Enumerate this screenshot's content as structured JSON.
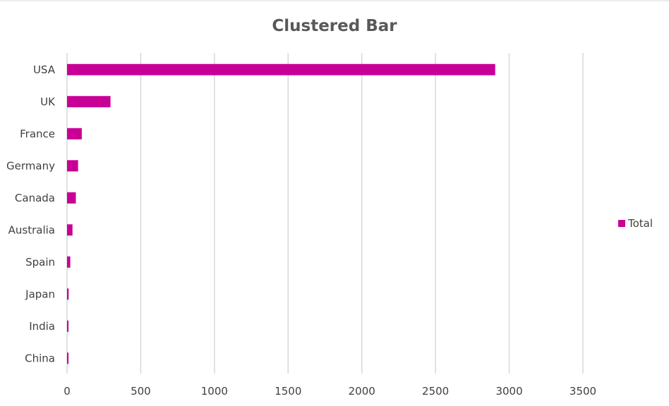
{
  "chart_data": {
    "type": "bar",
    "orientation": "horizontal",
    "title": "Clustered Bar",
    "categories": [
      "USA",
      "UK",
      "France",
      "Germany",
      "Canada",
      "Australia",
      "Spain",
      "Japan",
      "India",
      "China"
    ],
    "series": [
      {
        "name": "Total",
        "color": "#C80096",
        "values": [
          2905,
          295,
          100,
          75,
          60,
          37,
          22,
          11,
          10,
          10
        ]
      }
    ],
    "xlim": [
      0,
      3500
    ],
    "x_ticks": [
      "0",
      "500",
      "1000",
      "1500",
      "2000",
      "2500",
      "3000",
      "3500"
    ],
    "grid": true,
    "legend_position": "right"
  }
}
